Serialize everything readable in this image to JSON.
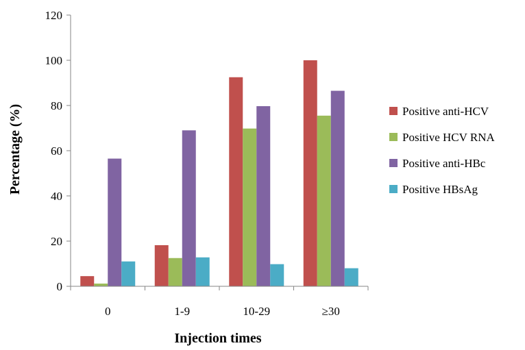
{
  "chart_data": {
    "type": "bar",
    "title": "",
    "xlabel": "Injection times",
    "ylabel": "Percentage (%)",
    "categories": [
      "0",
      "1-9",
      "10-29",
      "≥30"
    ],
    "ylim": [
      0,
      120
    ],
    "yticks": [
      "0",
      "20",
      "40",
      "60",
      "80",
      "100",
      "120"
    ],
    "grid": false,
    "legend_position": "right",
    "series": [
      {
        "name": "Positive anti-HCV",
        "color": "#c0504d",
        "values": [
          4.5,
          18.2,
          92.5,
          100
        ]
      },
      {
        "name": "Positive HCV RNA",
        "color": "#9bbb59",
        "values": [
          1.2,
          12.5,
          69.8,
          75.5
        ]
      },
      {
        "name": "Positive anti-HBc",
        "color": "#8064a2",
        "values": [
          56.5,
          69.0,
          79.7,
          86.5
        ]
      },
      {
        "name": "Positive HBsAg",
        "color": "#4bacc6",
        "values": [
          11.0,
          12.8,
          9.8,
          8.0
        ]
      }
    ]
  }
}
